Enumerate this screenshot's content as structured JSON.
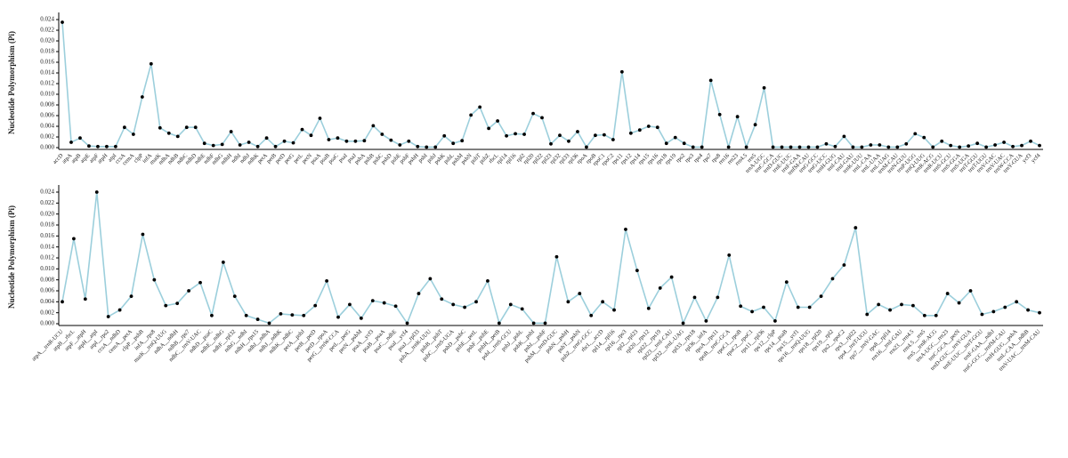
{
  "chart_data": [
    {
      "type": "line",
      "ylabel": "Nucleotide Polymorphism (Pi)",
      "color": "#9ccfdc",
      "marker_color": "#000000",
      "categories": [
        "accD",
        "atpA",
        "atpB",
        "atpE",
        "atpF",
        "atpH",
        "atpI",
        "ccsA",
        "cemA",
        "clpP",
        "infA",
        "matK",
        "ndhA",
        "ndhB",
        "ndhC",
        "ndhD",
        "ndhE",
        "ndhF",
        "ndhG",
        "ndhH",
        "ndhI",
        "ndhJ",
        "ndhK",
        "petA",
        "petB",
        "petD",
        "petG",
        "petL",
        "petN",
        "psaA",
        "psaB",
        "psaC",
        "psaI",
        "psaJ",
        "psbA",
        "psbB",
        "psbC",
        "psbD",
        "psbE",
        "psbF",
        "psbH",
        "psbI",
        "psbJ",
        "psbK",
        "psbL",
        "psbM",
        "psbN",
        "psbT",
        "psbZ",
        "rbcL",
        "rpl14",
        "rpl16",
        "rpl2",
        "rpl20",
        "rpl22",
        "rpl23",
        "rpl32",
        "rpl33",
        "rpl36",
        "rpoA",
        "rpoB",
        "rpoC1",
        "rpoC2",
        "rps11",
        "rps12",
        "rps14",
        "rps15",
        "rps16",
        "rps18",
        "rps19",
        "rps2",
        "rps3",
        "rps4",
        "rps7",
        "rps8",
        "rrn16",
        "rrn23",
        "rrn4.5",
        "rrn5",
        "trnA-UGC",
        "trnC-GCA",
        "trnD-GUC",
        "trnE-UUC",
        "trnF-GAA",
        "trnfM-CAU",
        "trnG-GCC",
        "trnG-UCC",
        "trnH-GUG",
        "trnI-CAU",
        "trnI-GAU",
        "trnK-UUU",
        "trnL-CAA",
        "trnL-UAA",
        "trnL-UAG",
        "trnM-CAU",
        "trnN-GUU",
        "trnP-UGG",
        "trnQ-UUG",
        "trnR-ACG",
        "trnR-UCU",
        "trnS-GCU",
        "trnS-GGA",
        "trnS-UGA",
        "trnT-GGU",
        "trnT-UGU",
        "trnV-GAC",
        "trnV-UAC",
        "trnW-CCA",
        "trnY-GUA",
        "ycf3",
        "ycf4"
      ],
      "values": [
        0.0235,
        0.001,
        0.0018,
        0.0003,
        0.0002,
        0.0002,
        0.0002,
        0.0038,
        0.0025,
        0.0095,
        0.0157,
        0.0037,
        0.0027,
        0.0021,
        0.0038,
        0.0038,
        0.0008,
        0.0004,
        0.0006,
        0.003,
        0.0005,
        0.001,
        0.0002,
        0.0018,
        0.0002,
        0.0012,
        0.0009,
        0.0034,
        0.0023,
        0.0055,
        0.0015,
        0.0018,
        0.0012,
        0.0012,
        0.0013,
        0.0041,
        0.0025,
        0.0014,
        0.0005,
        0.0012,
        0.0002,
        0.0001,
        0.0001,
        0.0022,
        0.0008,
        0.0013,
        0.0061,
        0.0076,
        0.0036,
        0.005,
        0.0022,
        0.0026,
        0.0025,
        0.0064,
        0.0056,
        0.0007,
        0.0023,
        0.0012,
        0.003,
        0.0001,
        0.0023,
        0.0024,
        0.0015,
        0.0142,
        0.0027,
        0.0033,
        0.004,
        0.0038,
        0.0008,
        0.0019,
        0.0008,
        0.0001,
        0.0001,
        0.0126,
        0.0062,
        0.0001,
        0.0058,
        0.0001,
        0.0043,
        0.0112,
        0.0001,
        0.0001,
        0.0001,
        0.0001,
        0.0001,
        0.0001,
        0.0007,
        0.0002,
        0.0021,
        0.0001,
        0.0001,
        0.0005,
        0.0005,
        0.0001,
        0.0001,
        0.0007,
        0.0026,
        0.0019,
        0.0001,
        0.0012,
        0.0004,
        0.0001,
        0.0003,
        0.0008,
        0.0001,
        0.0005,
        0.001,
        0.0002,
        0.0004,
        0.0012,
        0.0004
      ],
      "ylim": [
        0,
        0.024
      ],
      "yticks": [
        {
          "value": 0,
          "label": "0.000"
        },
        {
          "value": 0.002,
          "label": "0.002"
        },
        {
          "value": 0.004,
          "label": "0.004"
        },
        {
          "value": 0.006,
          "label": "0.006"
        },
        {
          "value": 0.008,
          "label": "0.008"
        },
        {
          "value": 0.01,
          "label": "0.010"
        },
        {
          "value": 0.012,
          "label": "0.012"
        },
        {
          "value": 0.014,
          "label": "0.014"
        },
        {
          "value": 0.016,
          "label": "0.016"
        },
        {
          "value": 0.018,
          "label": "0.018"
        },
        {
          "value": 0.02,
          "label": "0.020"
        },
        {
          "value": 0.022,
          "label": "0.022"
        },
        {
          "value": 0.024,
          "label": "0.024"
        }
      ]
    },
    {
      "type": "line",
      "ylabel": "Nucleotide Polymorphism (Pi)",
      "color": "#9ccfdc",
      "marker_color": "#000000",
      "categories": [
        "atpA__trnR-UCU",
        "atpB__rbcL",
        "atpF__atpH",
        "atpH__atpI",
        "atpI__rps2",
        "ccsA__ndhD",
        "cemA__petA",
        "clpP__psbB",
        "infA__rps8",
        "matK__trnQ-UUG",
        "ndhA__ndhH",
        "ndhB__rps7",
        "ndhC__trnV-UAC",
        "ndhD__psaC",
        "ndhE__ndhG",
        "ndhF__rpl32",
        "ndhG__ndhI",
        "ndhH__rps15",
        "ndhI__ndhA",
        "ndhJ__ndhK",
        "ndhK__ndhC",
        "petA__psbJ",
        "petB__petD",
        "petD__rpoA",
        "petG__trnW-CCA",
        "petL__petG",
        "petN__psbM",
        "psaA__ycf3",
        "psaB__psaA",
        "psaC__ndhE",
        "psaI__ycf4",
        "psaJ__rpl33",
        "psbA__trnK-UUU",
        "psbB__psbT",
        "psbC__trnS-UGA",
        "psbD__psbC",
        "psbE__petL",
        "psbF__psbE",
        "psbH__petB",
        "psbI__trnS-GCU",
        "psbJ__psbL",
        "psbK__psbI",
        "psbL__psbF",
        "psbM__trnD-GUC",
        "psbN__psbH",
        "psbT__psbN",
        "psbZ__trnG-GCC",
        "rbcL__accD",
        "rpl14__rpl16",
        "rpl16__rps3",
        "rpl2__rpl23",
        "rpl20__rps12",
        "rpl22__rps19",
        "rpl23__trnI-CAU",
        "rpl32__trnL-UAG",
        "rpl33__rps18",
        "rpl36__infA",
        "rpoA__rps11",
        "rpoB__trnC-GCA",
        "rpoC1__rpoB",
        "rpoC2__rpoC1",
        "rps11__rpl36",
        "rps12__clpP",
        "rps14__psaB",
        "rps15__ycf1",
        "rps16__trnQ-UUG",
        "rps18__rpl20",
        "rps19__rpl2",
        "rps2__rpoC2",
        "rps3__rpl22",
        "rps4__trnT-UGU",
        "rps7__trnV-GAC",
        "rps8__rpl14",
        "rrn16__trnI-GAU",
        "rrn23__rrn4.5",
        "rrn4.5__rrn5",
        "rrn5__trnR-ACG",
        "trnA-UGC__rrn23",
        "trnC-GCA__petN",
        "trnD-GUC__trnY-GUA",
        "trnE-UUC__trnT-GGU",
        "trnF-GAA__ndhJ",
        "trnG-GCC__trnfM-CAU",
        "trnH-GUG__psbA",
        "trnL-CAA__ndhB",
        "trnV-UAC__trnM-CAU"
      ],
      "values": [
        0.004,
        0.0155,
        0.0045,
        0.024,
        0.0013,
        0.0025,
        0.005,
        0.0163,
        0.008,
        0.0033,
        0.0037,
        0.006,
        0.0075,
        0.0015,
        0.0112,
        0.005,
        0.0015,
        0.0008,
        0.0001,
        0.0018,
        0.0016,
        0.0015,
        0.0033,
        0.0078,
        0.0012,
        0.0035,
        0.001,
        0.0042,
        0.0038,
        0.0032,
        0.0001,
        0.0055,
        0.0082,
        0.0045,
        0.0035,
        0.003,
        0.004,
        0.0078,
        0.0001,
        0.0035,
        0.0027,
        0.0001,
        0.0001,
        0.0122,
        0.004,
        0.0055,
        0.0015,
        0.004,
        0.0025,
        0.0172,
        0.0097,
        0.0028,
        0.0065,
        0.0085,
        0.0001,
        0.0048,
        0.0005,
        0.0048,
        0.0125,
        0.0032,
        0.0022,
        0.003,
        0.0005,
        0.0076,
        0.003,
        0.003,
        0.005,
        0.0082,
        0.0107,
        0.0175,
        0.0017,
        0.0035,
        0.0025,
        0.0035,
        0.0033,
        0.0015,
        0.0015,
        0.0055,
        0.0038,
        0.006,
        0.0017,
        0.0022,
        0.003,
        0.004,
        0.0025,
        0.002
      ],
      "ylim": [
        0,
        0.024
      ],
      "yticks": [
        {
          "value": 0,
          "label": "0.000"
        },
        {
          "value": 0.002,
          "label": "0.002"
        },
        {
          "value": 0.004,
          "label": "0.004"
        },
        {
          "value": 0.006,
          "label": "0.006"
        },
        {
          "value": 0.008,
          "label": "0.008"
        },
        {
          "value": 0.01,
          "label": "0.010"
        },
        {
          "value": 0.012,
          "label": "0.012"
        },
        {
          "value": 0.014,
          "label": "0.014"
        },
        {
          "value": 0.016,
          "label": "0.016"
        },
        {
          "value": 0.018,
          "label": "0.018"
        },
        {
          "value": 0.02,
          "label": "0.020"
        },
        {
          "value": 0.022,
          "label": "0.022"
        },
        {
          "value": 0.024,
          "label": "0.024"
        }
      ]
    }
  ]
}
